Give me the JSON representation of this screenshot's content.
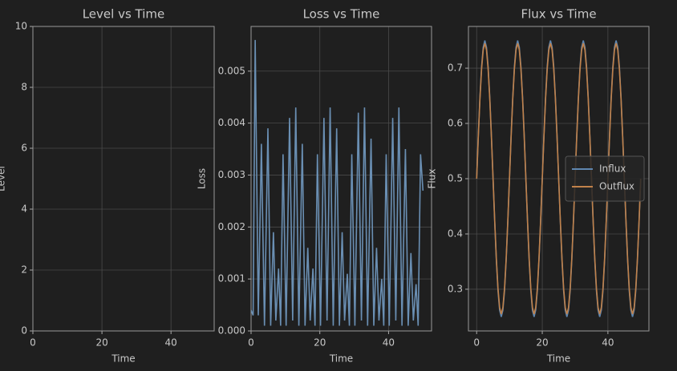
{
  "chart_data": [
    {
      "type": "line",
      "title": "Level vs Time",
      "xlabel": "Time",
      "ylabel": "Level",
      "xlim": [
        0,
        52.5
      ],
      "xticks": [
        0,
        20,
        40
      ],
      "ylim": [
        0,
        10
      ],
      "yticks": [
        0,
        2,
        4,
        6,
        8,
        10
      ],
      "grid": true
    },
    {
      "type": "line",
      "title": "Loss vs Time",
      "xlabel": "Time",
      "ylabel": "Loss",
      "color": "#6a8fb3",
      "xlim": [
        0,
        52.5
      ],
      "xticks": [
        0,
        20,
        40
      ],
      "ylim": [
        0,
        0.00586
      ],
      "yticks": [
        {
          "value": 0,
          "label": "0.000"
        },
        0.001,
        0.002,
        0.003,
        0.004,
        0.005
      ],
      "grid": true,
      "x": [
        0,
        0.6,
        1.2,
        2.1,
        3.0,
        3.9,
        4.9,
        5.7,
        6.5,
        7.2,
        8.0,
        8.6,
        9.3,
        10.2,
        11.2,
        12.1,
        13.0,
        13.9,
        14.9,
        15.7,
        16.5,
        17.2,
        18.0,
        18.6,
        19.3,
        20.2,
        21.2,
        22.1,
        23.0,
        23.9,
        24.9,
        25.7,
        26.5,
        27.2,
        28.0,
        28.6,
        29.3,
        30.2,
        31.2,
        32.1,
        33.0,
        33.9,
        34.9,
        35.7,
        36.5,
        37.2,
        38.0,
        38.6,
        39.3,
        40.2,
        41.2,
        42.1,
        43.0,
        43.9,
        44.9,
        45.7,
        46.5,
        47.2,
        48.0,
        48.6,
        49.3,
        50.0
      ],
      "values": [
        0.0004,
        0.0003,
        0.0056,
        0.0003,
        0.0036,
        0.0001,
        0.0039,
        0.0001,
        0.0019,
        0.0002,
        0.0012,
        0.0001,
        0.0034,
        0.0001,
        0.0041,
        0.0002,
        0.0043,
        0.0001,
        0.0036,
        0.0001,
        0.0016,
        0.0002,
        0.0012,
        0.0001,
        0.0034,
        0.0001,
        0.0041,
        0.0002,
        0.0043,
        0.0001,
        0.0039,
        0.0001,
        0.0019,
        0.0002,
        0.0011,
        0.0001,
        0.0034,
        0.0001,
        0.0042,
        0.0002,
        0.0043,
        0.0001,
        0.0037,
        0.0001,
        0.0016,
        0.0002,
        0.001,
        0.0001,
        0.0034,
        0.0001,
        0.0041,
        0.0002,
        0.0043,
        0.0001,
        0.0035,
        0.0001,
        0.0015,
        0.0002,
        0.0009,
        0.0001,
        0.0034,
        0.0027
      ]
    },
    {
      "type": "line",
      "title": "Flux vs Time",
      "xlabel": "Time",
      "ylabel": "Flux",
      "xlim": [
        -2.5,
        52.5
      ],
      "xticks": [
        0,
        20,
        40
      ],
      "ylim": [
        0.2245,
        0.7755
      ],
      "yticks": [
        0.3,
        0.4,
        0.5,
        0.6,
        0.7
      ],
      "grid": true,
      "legend": "center right",
      "x": [
        0,
        0.5,
        1,
        1.5,
        2,
        2.5,
        3,
        3.5,
        4,
        4.5,
        5,
        5.5,
        6,
        6.5,
        7,
        7.5,
        8,
        8.5,
        9,
        9.5,
        10,
        10.5,
        11,
        11.5,
        12,
        12.5,
        13,
        13.5,
        14,
        14.5,
        15,
        15.5,
        16,
        16.5,
        17,
        17.5,
        18,
        18.5,
        19,
        19.5,
        20,
        20.5,
        21,
        21.5,
        22,
        22.5,
        23,
        23.5,
        24,
        24.5,
        25,
        25.5,
        26,
        26.5,
        27,
        27.5,
        28,
        28.5,
        29,
        29.5,
        30,
        30.5,
        31,
        31.5,
        32,
        32.5,
        33,
        33.5,
        34,
        34.5,
        35,
        35.5,
        36,
        36.5,
        37,
        37.5,
        38,
        38.5,
        39,
        39.5,
        40,
        40.5,
        41,
        41.5,
        42,
        42.5,
        43,
        43.5,
        44,
        44.5,
        45,
        45.5,
        46,
        46.5,
        47,
        47.5,
        48,
        48.5,
        49,
        49.5,
        50
      ],
      "series": [
        {
          "name": "Influx",
          "color": "#5f87b0",
          "values": [
            0.5,
            0.5773,
            0.647,
            0.7023,
            0.7378,
            0.75,
            0.7378,
            0.7023,
            0.647,
            0.5773,
            0.5,
            0.4227,
            0.353,
            0.2977,
            0.2622,
            0.25,
            0.2622,
            0.2977,
            0.353,
            0.4227,
            0.5,
            0.5773,
            0.647,
            0.7023,
            0.7378,
            0.75,
            0.7378,
            0.7023,
            0.647,
            0.5773,
            0.5,
            0.4227,
            0.353,
            0.2977,
            0.2622,
            0.25,
            0.2622,
            0.2977,
            0.353,
            0.4227,
            0.5,
            0.5773,
            0.647,
            0.7023,
            0.7378,
            0.75,
            0.7378,
            0.7023,
            0.647,
            0.5773,
            0.5,
            0.4227,
            0.353,
            0.2977,
            0.2622,
            0.25,
            0.2622,
            0.2977,
            0.353,
            0.4227,
            0.5,
            0.5773,
            0.647,
            0.7023,
            0.7378,
            0.75,
            0.7378,
            0.7023,
            0.647,
            0.5773,
            0.5,
            0.4227,
            0.353,
            0.2977,
            0.2622,
            0.25,
            0.2622,
            0.2977,
            0.353,
            0.4227,
            0.5,
            0.5773,
            0.647,
            0.7023,
            0.7378,
            0.75,
            0.7378,
            0.7023,
            0.647,
            0.5773,
            0.5,
            0.4227,
            0.353,
            0.2977,
            0.2622,
            0.25,
            0.2622,
            0.2977,
            0.353,
            0.4227,
            0.5
          ]
        },
        {
          "name": "Outflux",
          "color": "#c0814a",
          "values": [
            0.5,
            0.5757,
            0.6441,
            0.6982,
            0.733,
            0.745,
            0.733,
            0.6982,
            0.6441,
            0.5757,
            0.5,
            0.4243,
            0.3559,
            0.3018,
            0.267,
            0.255,
            0.267,
            0.3018,
            0.3559,
            0.4243,
            0.5,
            0.5757,
            0.6441,
            0.6982,
            0.733,
            0.745,
            0.733,
            0.6982,
            0.6441,
            0.5757,
            0.5,
            0.4243,
            0.3559,
            0.3018,
            0.267,
            0.255,
            0.267,
            0.3018,
            0.3559,
            0.4243,
            0.5,
            0.5757,
            0.6441,
            0.6982,
            0.733,
            0.745,
            0.733,
            0.6982,
            0.6441,
            0.5757,
            0.5,
            0.4243,
            0.3559,
            0.3018,
            0.267,
            0.255,
            0.267,
            0.3018,
            0.3559,
            0.4243,
            0.5,
            0.5757,
            0.6441,
            0.6982,
            0.733,
            0.745,
            0.733,
            0.6982,
            0.6441,
            0.5757,
            0.5,
            0.4243,
            0.3559,
            0.3018,
            0.267,
            0.255,
            0.267,
            0.3018,
            0.3559,
            0.4243,
            0.5,
            0.5757,
            0.6441,
            0.6982,
            0.733,
            0.745,
            0.733,
            0.6982,
            0.6441,
            0.5757,
            0.5,
            0.4243,
            0.3559,
            0.3018,
            0.267,
            0.255,
            0.267,
            0.3018,
            0.3559,
            0.4243,
            0.5
          ]
        }
      ]
    }
  ]
}
